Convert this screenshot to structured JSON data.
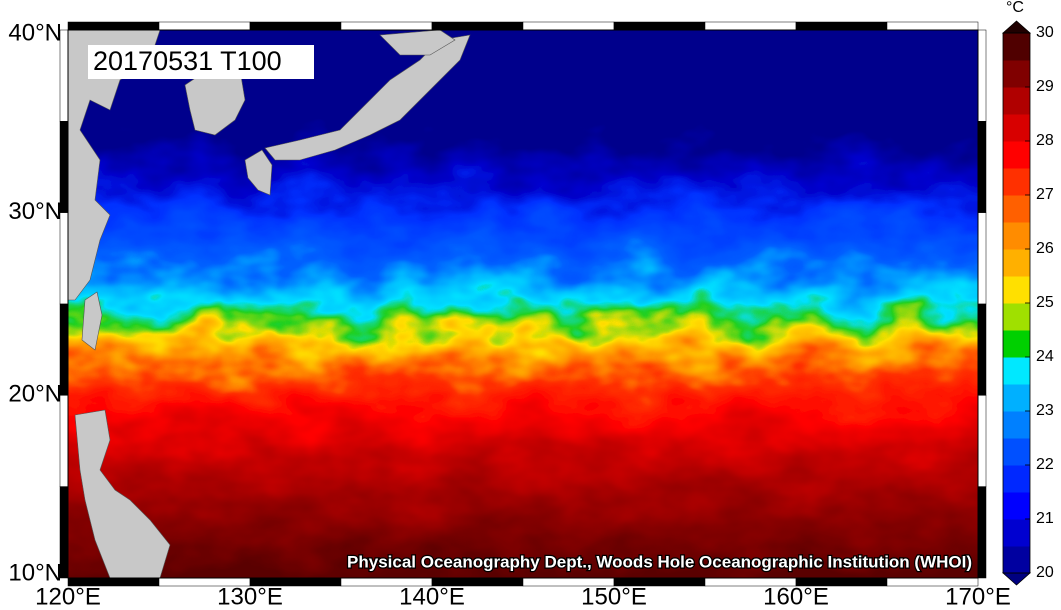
{
  "map": {
    "label": "20170531 T100",
    "credit": "Physical Oceanography Dept., Woods Hole Oceanographic Institution (WHOI)",
    "lat_ticks": [
      {
        "value": 40,
        "label": "40°N"
      },
      {
        "value": 30,
        "label": "30°N"
      },
      {
        "value": 20,
        "label": "20°N"
      },
      {
        "value": 10,
        "label": "10°N"
      }
    ],
    "lon_ticks": [
      {
        "value": 120,
        "label": "120°E"
      },
      {
        "value": 130,
        "label": "130°E"
      },
      {
        "value": 140,
        "label": "140°E"
      },
      {
        "value": 150,
        "label": "150°E"
      },
      {
        "value": 160,
        "label": "160°E"
      },
      {
        "value": 170,
        "label": "170°E"
      }
    ]
  },
  "colorbar": {
    "unit": "°C",
    "ticks": [
      20,
      21,
      22,
      23,
      24,
      25,
      26,
      27,
      28,
      29,
      30
    ],
    "colors": [
      "#0000a0",
      "#0000d0",
      "#0000ff",
      "#0028ff",
      "#0050ff",
      "#0080ff",
      "#00b0ff",
      "#00e8ff",
      "#00d000",
      "#a0e000",
      "#ffe000",
      "#ffb000",
      "#ff8c00",
      "#ff6000",
      "#ff3000",
      "#ff0000",
      "#d80000",
      "#b00000",
      "#800000",
      "#500000"
    ]
  }
}
